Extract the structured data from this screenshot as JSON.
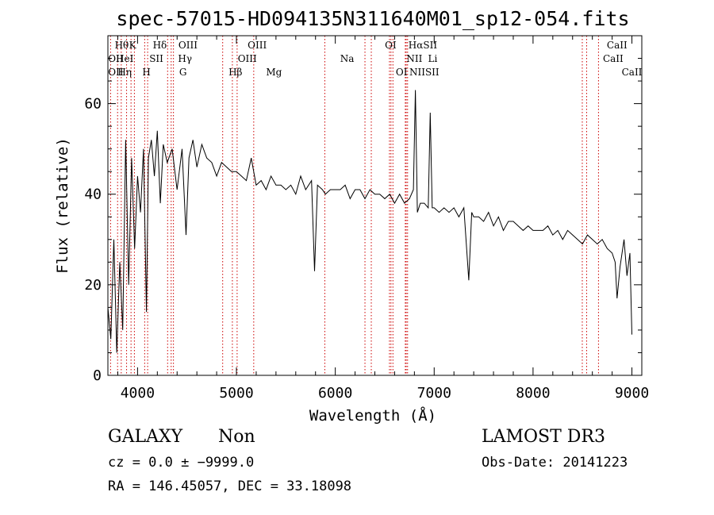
{
  "chart_data": {
    "type": "line",
    "title": "spec-57015-HD094135N311640M01_sp12-054.fits",
    "xlabel": "Wavelength (Å)",
    "ylabel": "Flux (relative)",
    "xlim": [
      3700,
      9100
    ],
    "ylim": [
      0,
      75
    ],
    "xticks": [
      4000,
      5000,
      6000,
      7000,
      8000,
      9000
    ],
    "yticks": [
      0,
      20,
      40,
      60
    ],
    "grid": false,
    "series": [
      {
        "name": "flux",
        "color": "#000000",
        "x": [
          3700,
          3730,
          3760,
          3790,
          3820,
          3850,
          3880,
          3910,
          3940,
          3970,
          4000,
          4030,
          4060,
          4090,
          4110,
          4140,
          4170,
          4200,
          4230,
          4260,
          4300,
          4350,
          4400,
          4450,
          4490,
          4520,
          4560,
          4600,
          4650,
          4700,
          4750,
          4800,
          4850,
          4900,
          4950,
          5000,
          5050,
          5100,
          5150,
          5200,
          5250,
          5300,
          5350,
          5400,
          5450,
          5500,
          5550,
          5600,
          5650,
          5700,
          5760,
          5790,
          5820,
          5870,
          5900,
          5950,
          6000,
          6050,
          6100,
          6150,
          6200,
          6250,
          6300,
          6350,
          6400,
          6450,
          6500,
          6550,
          6600,
          6650,
          6700,
          6750,
          6790,
          6810,
          6830,
          6860,
          6900,
          6940,
          6960,
          6980,
          7000,
          7050,
          7100,
          7150,
          7200,
          7250,
          7300,
          7350,
          7380,
          7400,
          7450,
          7500,
          7550,
          7600,
          7650,
          7700,
          7750,
          7800,
          7850,
          7900,
          7950,
          8000,
          8050,
          8100,
          8150,
          8200,
          8250,
          8300,
          8350,
          8400,
          8450,
          8500,
          8550,
          8600,
          8650,
          8700,
          8750,
          8800,
          8830,
          8850,
          8880,
          8920,
          8950,
          8980,
          9000
        ],
        "values": [
          15,
          8,
          30,
          5,
          25,
          10,
          52,
          20,
          48,
          28,
          44,
          36,
          50,
          14,
          48,
          52,
          44,
          54,
          38,
          51,
          47,
          50,
          41,
          50,
          31,
          48,
          52,
          46,
          51,
          48,
          47,
          44,
          47,
          46,
          45,
          45,
          44,
          43,
          48,
          42,
          43,
          41,
          44,
          42,
          42,
          41,
          42,
          40,
          44,
          41,
          43,
          23,
          42,
          41,
          40,
          41,
          41,
          41,
          42,
          39,
          41,
          41,
          39,
          41,
          40,
          40,
          39,
          40,
          38,
          40,
          38,
          39,
          41,
          63,
          36,
          38,
          38,
          37,
          58,
          37,
          37,
          36,
          37,
          36,
          37,
          35,
          37,
          21,
          36,
          35,
          35,
          34,
          36,
          33,
          35,
          32,
          34,
          34,
          33,
          32,
          33,
          32,
          32,
          32,
          33,
          31,
          32,
          30,
          32,
          31,
          30,
          29,
          31,
          30,
          29,
          30,
          28,
          27,
          25,
          17,
          24,
          30,
          22,
          27,
          9
        ]
      }
    ],
    "lines": [
      {
        "name": "OII",
        "x": 3727
      },
      {
        "name": "Hθ",
        "x": 3798
      },
      {
        "name": "Hη",
        "x": 3835
      },
      {
        "name": "HeI",
        "x": 3889
      },
      {
        "name": "K",
        "x": 3934
      },
      {
        "name": "H",
        "x": 3968
      },
      {
        "name": "Hδ",
        "x": 4102
      },
      {
        "name": "SII",
        "x": 4072
      },
      {
        "name": "G",
        "x": 4304
      },
      {
        "name": "Hγ",
        "x": 4340
      },
      {
        "name": "OIII",
        "x": 4363
      },
      {
        "name": "Hβ",
        "x": 4861
      },
      {
        "name": "OIII",
        "x": 4959
      },
      {
        "name": "OIII",
        "x": 5007
      },
      {
        "name": "Mg",
        "x": 5175
      },
      {
        "name": "Na",
        "x": 5894
      },
      {
        "name": "OI",
        "x": 6300
      },
      {
        "name": "OI",
        "x": 6364
      },
      {
        "name": "NII",
        "x": 6548
      },
      {
        "name": "Hα",
        "x": 6563
      },
      {
        "name": "NII",
        "x": 6583
      },
      {
        "name": "Li",
        "x": 6708
      },
      {
        "name": "SII",
        "x": 6717
      },
      {
        "name": "SII",
        "x": 6731
      },
      {
        "name": "CaII",
        "x": 8498
      },
      {
        "name": "CaII",
        "x": 8542
      },
      {
        "name": "CaII",
        "x": 8662
      }
    ],
    "labels": [
      {
        "text": "Hθ",
        "x": 3840,
        "row": 1
      },
      {
        "text": "K",
        "x": 3950,
        "row": 1
      },
      {
        "text": "Hδ",
        "x": 4225,
        "row": 1
      },
      {
        "text": "OIII",
        "x": 4510,
        "row": 1
      },
      {
        "text": "OIII",
        "x": 5210,
        "row": 1
      },
      {
        "text": "OI",
        "x": 6560,
        "row": 1
      },
      {
        "text": "HαSII",
        "x": 6885,
        "row": 1
      },
      {
        "text": "CaII",
        "x": 8850,
        "row": 1
      },
      {
        "text": "OII",
        "x": 3780,
        "row": 2
      },
      {
        "text": "HeI",
        "x": 3870,
        "row": 2
      },
      {
        "text": "SII",
        "x": 4190,
        "row": 2
      },
      {
        "text": "Hγ",
        "x": 4480,
        "row": 2
      },
      {
        "text": "OIII",
        "x": 5110,
        "row": 2
      },
      {
        "text": "Na",
        "x": 6120,
        "row": 2
      },
      {
        "text": "NII",
        "x": 6800,
        "row": 2
      },
      {
        "text": "Li",
        "x": 6985,
        "row": 2
      },
      {
        "text": "CaII",
        "x": 8810,
        "row": 2
      },
      {
        "text": "OII",
        "x": 3780,
        "row": 3
      },
      {
        "text": "Hη",
        "x": 3870,
        "row": 3
      },
      {
        "text": "H",
        "x": 4090,
        "row": 3
      },
      {
        "text": "G",
        "x": 4460,
        "row": 3
      },
      {
        "text": "Hβ",
        "x": 4990,
        "row": 3
      },
      {
        "text": "Mg",
        "x": 5380,
        "row": 3
      },
      {
        "text": "OI",
        "x": 6670,
        "row": 3
      },
      {
        "text": "NIISII",
        "x": 6900,
        "row": 3
      },
      {
        "text": "CaII",
        "x": 9000,
        "row": 3
      }
    ]
  },
  "info": {
    "class": "GALAXY",
    "subclass": "Non",
    "survey": "LAMOST DR3",
    "cz": "cz = 0.0 ± −9999.0",
    "obs_date": "Obs-Date: 20141223",
    "coords": "RA = 146.45057, DEC =  33.18098"
  },
  "colors": {
    "line_marker": "#cc0000",
    "axis": "#000000"
  }
}
